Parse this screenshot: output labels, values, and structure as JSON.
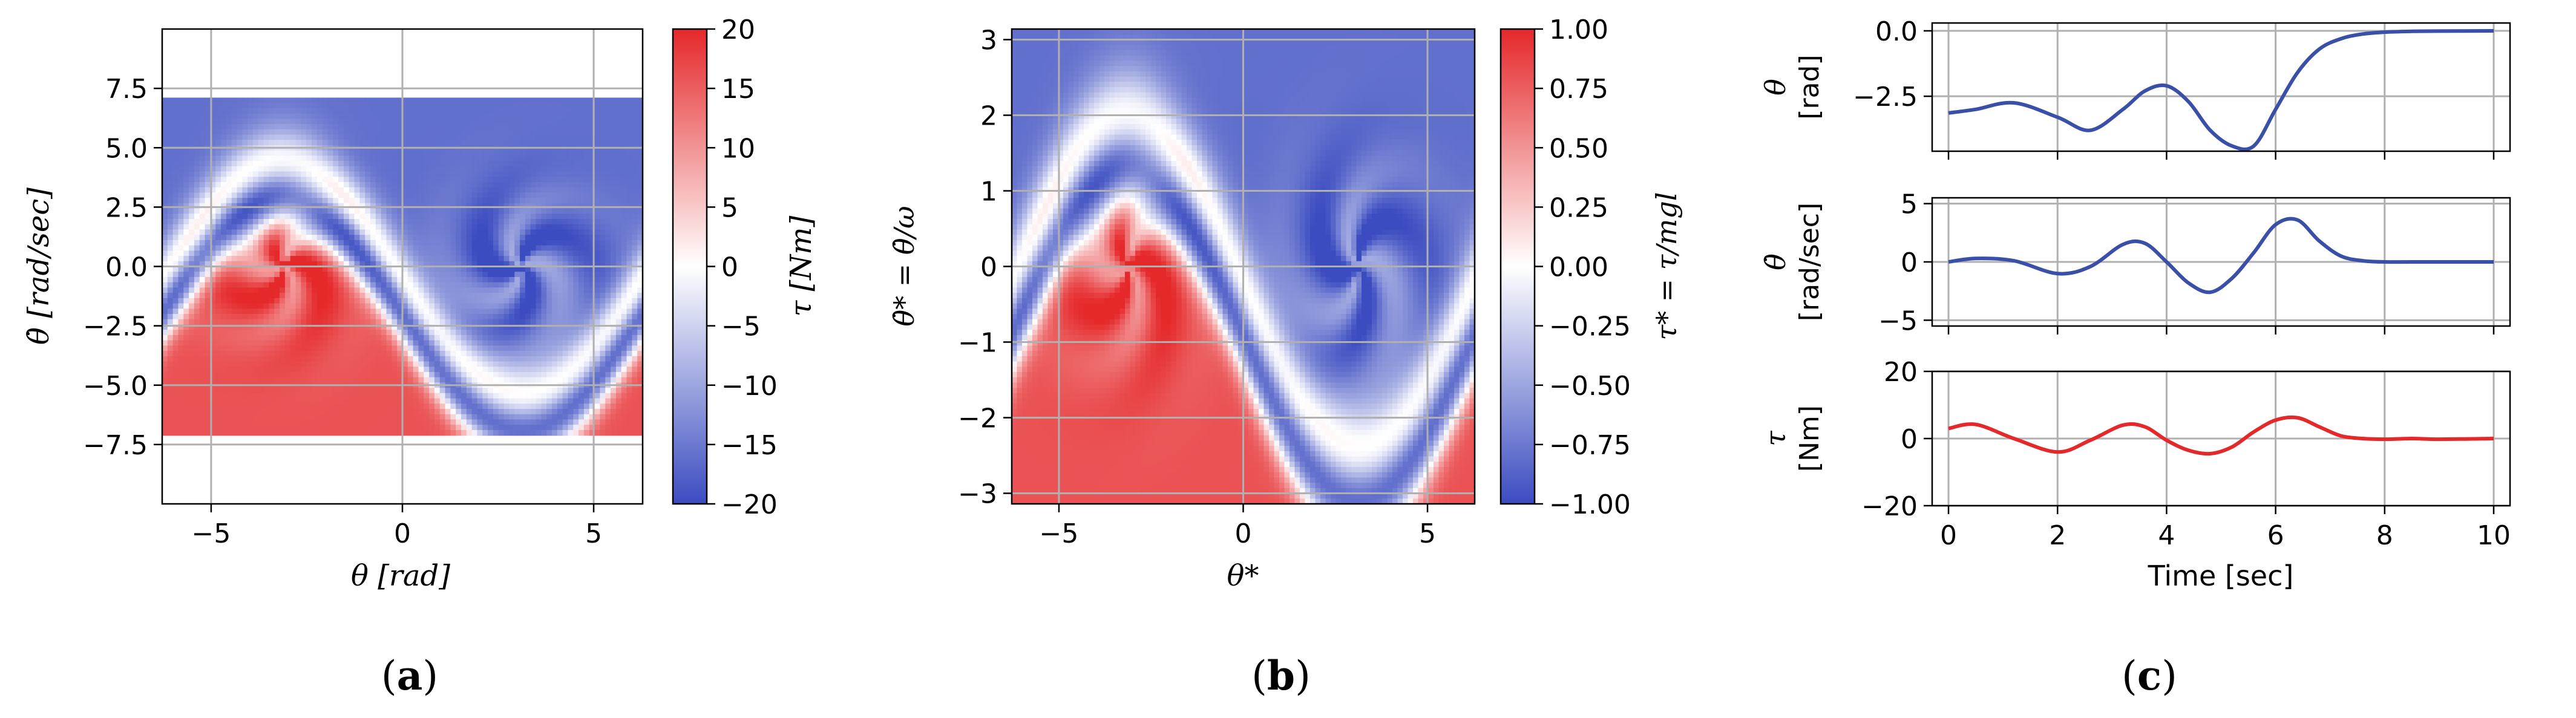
{
  "figure": {
    "panels": [
      {
        "id": "a",
        "label": "(a)",
        "letter": "a"
      },
      {
        "id": "b",
        "label": "(b)",
        "letter": "b"
      },
      {
        "id": "c",
        "label": "(c)",
        "letter": "c"
      }
    ]
  },
  "chart_data": [
    {
      "type": "heatmap",
      "panel": "a",
      "title": "",
      "xlabel": "θ [rad]",
      "ylabel": "θ̇ [rad/sec]",
      "xlim": [
        -6.28,
        6.28
      ],
      "ylim": [
        -10,
        10
      ],
      "xticks": [
        -5,
        0,
        5
      ],
      "xtick_labels": [
        "−5",
        "0",
        "5"
      ],
      "yticks": [
        -7.5,
        -5.0,
        -2.5,
        0.0,
        2.5,
        5.0,
        7.5
      ],
      "ytick_labels": [
        "−7.5",
        "−5.0",
        "−2.5",
        "0.0",
        "2.5",
        "5.0",
        "7.5"
      ],
      "grid": true,
      "data_region_thetadot_limit": 7,
      "colorbar": {
        "label": "τ [Nm]",
        "min": -20,
        "max": 20,
        "ticks": [
          20,
          15,
          10,
          5,
          0,
          -5,
          -10,
          -15,
          -20
        ],
        "tick_labels": [
          "20",
          "15",
          "10",
          "5",
          "0",
          "−5",
          "−10",
          "−15",
          "−20"
        ],
        "cmap": [
          "#3b4cc0",
          "#ffffff",
          "#e5282a"
        ]
      }
    },
    {
      "type": "heatmap",
      "panel": "b",
      "title": "",
      "xlabel": "θ*",
      "ylabel": "θ̇* = θ̇/ω",
      "xlim": [
        -6.28,
        6.28
      ],
      "ylim": [
        -3.14,
        3.14
      ],
      "xticks": [
        -5,
        0,
        5
      ],
      "xtick_labels": [
        "−5",
        "0",
        "5"
      ],
      "yticks": [
        3,
        2,
        1,
        0,
        -1,
        -2,
        -3
      ],
      "ytick_labels": [
        "3",
        "2",
        "1",
        "0",
        "−1",
        "−2",
        "−3"
      ],
      "grid": true,
      "colorbar": {
        "label": "τ* = τ/mgl",
        "min": -1.0,
        "max": 1.0,
        "ticks": [
          1.0,
          0.75,
          0.5,
          0.25,
          0.0,
          -0.25,
          -0.5,
          -0.75,
          -1.0
        ],
        "tick_labels": [
          "1.00",
          "0.75",
          "0.50",
          "0.25",
          "0.00",
          "−0.25",
          "−0.50",
          "−0.75",
          "−1.00"
        ],
        "cmap": [
          "#3b4cc0",
          "#ffffff",
          "#e5282a"
        ]
      }
    },
    {
      "type": "line",
      "panel": "c",
      "xlabel": "Time [sec]",
      "xlim": [
        -0.3,
        10.3
      ],
      "xticks": [
        0,
        2,
        4,
        6,
        8,
        10
      ],
      "xtick_labels": [
        "0",
        "2",
        "4",
        "6",
        "8",
        "10"
      ],
      "grid": true,
      "x": [
        0,
        0.5,
        1.2,
        2.0,
        2.6,
        3.2,
        3.6,
        4.0,
        4.4,
        4.8,
        5.2,
        5.6,
        6.0,
        6.4,
        6.8,
        7.2,
        7.6,
        8.0,
        8.5,
        9.0,
        10.0
      ],
      "subplots": [
        {
          "ylabel": "θ",
          "yunit": "[rad]",
          "ylim": [
            -4.6,
            0.3
          ],
          "yticks": [
            0.0,
            -2.5
          ],
          "ytick_labels": [
            "0.0",
            "−2.5"
          ],
          "color": "#3a4fa8",
          "values": [
            -3.14,
            -3.0,
            -2.75,
            -3.3,
            -3.8,
            -3.0,
            -2.3,
            -2.1,
            -2.7,
            -3.8,
            -4.4,
            -4.4,
            -3.0,
            -1.6,
            -0.7,
            -0.3,
            -0.12,
            -0.05,
            -0.02,
            -0.01,
            0.0
          ]
        },
        {
          "ylabel": "θ̇",
          "yunit": "[rad/sec]",
          "ylim": [
            -5.5,
            5.5
          ],
          "yticks": [
            5,
            0,
            -5
          ],
          "ytick_labels": [
            "5",
            "0",
            "−5"
          ],
          "color": "#3a4fa8",
          "values": [
            0.0,
            0.3,
            0.1,
            -1.0,
            -0.4,
            1.5,
            1.6,
            0.0,
            -1.8,
            -2.6,
            -1.4,
            0.8,
            3.2,
            3.6,
            1.8,
            0.5,
            0.1,
            0.0,
            0.0,
            0.0,
            0.0
          ]
        },
        {
          "ylabel": "τ",
          "yunit": "[Nm]",
          "ylim": [
            -20,
            20
          ],
          "yticks": [
            20,
            0,
            -20
          ],
          "ytick_labels": [
            "20",
            "0",
            "−20"
          ],
          "color": "#e5282a",
          "values": [
            3.0,
            4.2,
            0.0,
            -4.0,
            -0.5,
            4.0,
            3.5,
            -0.5,
            -3.5,
            -4.5,
            -2.5,
            2.0,
            5.5,
            6.2,
            3.5,
            0.8,
            0.0,
            -0.2,
            0.0,
            -0.2,
            0.0
          ]
        }
      ]
    }
  ]
}
